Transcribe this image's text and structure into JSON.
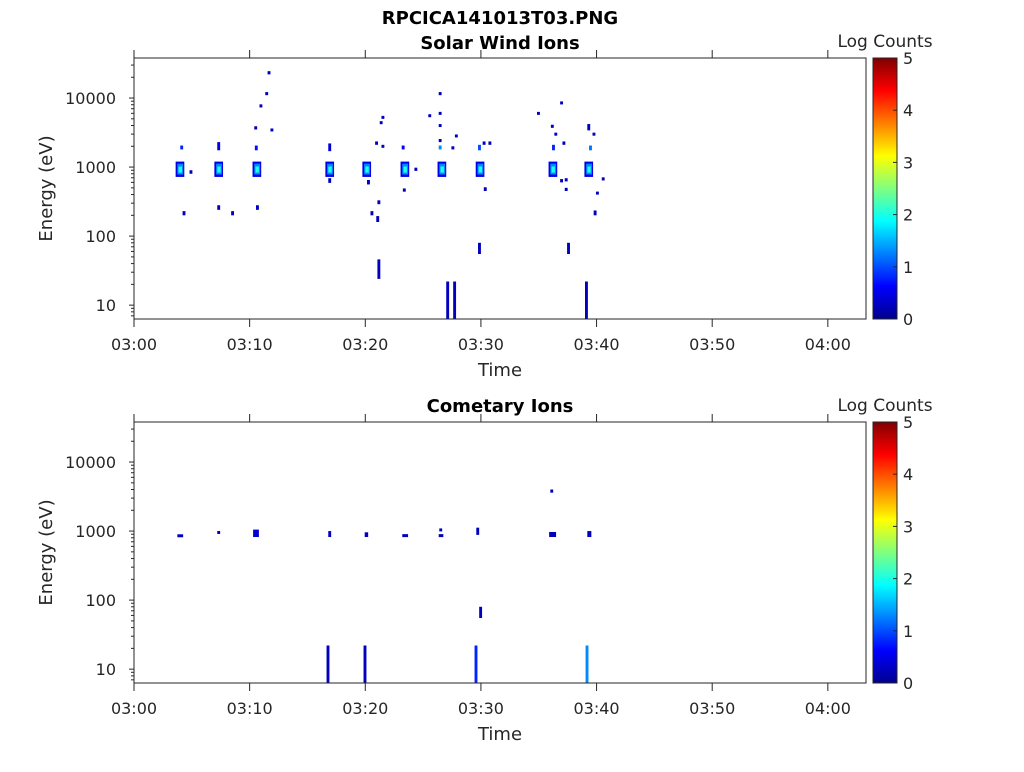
{
  "chart_data": {
    "type": "heatmap",
    "title": "RPCICA141013T03.PNG",
    "colormap": "jet",
    "panels": [
      {
        "subtitle": "Solar Wind Ions",
        "xlabel": "Time",
        "ylabel": "Energy (eV)",
        "xlim_minutes": [
          0,
          63.3
        ],
        "ylim": [
          6.3,
          38000
        ],
        "yscale": "log",
        "xticks": [
          {
            "min": 0,
            "label": "03:00"
          },
          {
            "min": 10,
            "label": "03:10"
          },
          {
            "min": 20,
            "label": "03:20"
          },
          {
            "min": 30,
            "label": "03:30"
          },
          {
            "min": 40,
            "label": "03:40"
          },
          {
            "min": 50,
            "label": "03:50"
          },
          {
            "min": 60,
            "label": "04:00"
          }
        ],
        "yticks": [
          {
            "value": 10,
            "label": "10"
          },
          {
            "value": 100,
            "label": "100"
          },
          {
            "value": 1000,
            "label": "1000"
          },
          {
            "value": 10000,
            "label": "10000"
          }
        ],
        "colorbar": {
          "label": "Log Counts",
          "range": [
            0,
            5
          ],
          "ticks": [
            "0",
            "1",
            "2",
            "3",
            "4",
            "5"
          ]
        },
        "cluster_times": [
          3.95,
          7.3,
          10.6,
          16.9,
          20.1,
          23.4,
          26.6,
          29.9,
          36.2,
          39.3
        ],
        "cells": [
          [
            4.0,
            1800,
            2050,
            0.8
          ],
          [
            4.2,
            200,
            230,
            0.3
          ],
          [
            4.8,
            800,
            900,
            0.3
          ],
          [
            7.2,
            1750,
            2300,
            0.5
          ],
          [
            7.2,
            240,
            280,
            0.3
          ],
          [
            8.4,
            200,
            230,
            0.3
          ],
          [
            10.45,
            1750,
            2050,
            0.7
          ],
          [
            10.55,
            240,
            280,
            0.3
          ],
          [
            10.4,
            3500,
            3900,
            0.3
          ],
          [
            10.85,
            7300,
            8100,
            0.3
          ],
          [
            11.35,
            11000,
            12200,
            0.3
          ],
          [
            11.55,
            22000,
            24500,
            0.3
          ],
          [
            11.8,
            3300,
            3600,
            0.3
          ],
          [
            16.8,
            1700,
            2200,
            0.4
          ],
          [
            16.8,
            590,
            690,
            0.3
          ],
          [
            20.15,
            560,
            650,
            0.3
          ],
          [
            20.45,
            200,
            230,
            0.3
          ],
          [
            20.85,
            2100,
            2350,
            0.3
          ],
          [
            21.05,
            290,
            330,
            0.3
          ],
          [
            20.95,
            160,
            195,
            0.3
          ],
          [
            21.05,
            24,
            46,
            0.3
          ],
          [
            21.25,
            4200,
            4600,
            0.3
          ],
          [
            21.4,
            5000,
            5500,
            0.3
          ],
          [
            21.4,
            1900,
            2100,
            0.3
          ],
          [
            23.15,
            1800,
            2050,
            0.6
          ],
          [
            23.25,
            440,
            490,
            0.3
          ],
          [
            24.25,
            880,
            980,
            0.3
          ],
          [
            25.45,
            5300,
            5800,
            0.3
          ],
          [
            26.35,
            11000,
            12200,
            0.3
          ],
          [
            26.35,
            5700,
            6300,
            0.3
          ],
          [
            26.35,
            3800,
            4200,
            0.3
          ],
          [
            26.35,
            2300,
            2550,
            0.3
          ],
          [
            26.35,
            1800,
            2050,
            1.3
          ],
          [
            27.0,
            6.3,
            22,
            0.3
          ],
          [
            27.6,
            6.3,
            22,
            0.3
          ],
          [
            27.45,
            1800,
            2000,
            0.3
          ],
          [
            27.75,
            2700,
            2950,
            0.3
          ],
          [
            29.75,
            1750,
            2100,
            1.0
          ],
          [
            29.75,
            55,
            80,
            0.3
          ],
          [
            30.15,
            2100,
            2350,
            0.3
          ],
          [
            30.25,
            450,
            510,
            0.3
          ],
          [
            30.65,
            2100,
            2350,
            0.3
          ],
          [
            34.85,
            5700,
            6300,
            0.3
          ],
          [
            36.05,
            3700,
            4100,
            0.3
          ],
          [
            36.15,
            1750,
            2100,
            0.8
          ],
          [
            36.35,
            2850,
            3150,
            0.3
          ],
          [
            36.85,
            8100,
            8900,
            0.3
          ],
          [
            37.05,
            2100,
            2350,
            0.3
          ],
          [
            36.85,
            600,
            670,
            0.3
          ],
          [
            37.25,
            450,
            500,
            0.3
          ],
          [
            37.25,
            620,
            690,
            0.3
          ],
          [
            37.45,
            55,
            80,
            0.3
          ],
          [
            39.2,
            3400,
            4200,
            0.3
          ],
          [
            39.65,
            2850,
            3150,
            0.3
          ],
          [
            39.35,
            1750,
            2050,
            1.2
          ],
          [
            39.0,
            6.3,
            22,
            0.3
          ],
          [
            39.75,
            200,
            235,
            0.3
          ],
          [
            39.95,
            400,
            440,
            0.3
          ],
          [
            40.45,
            640,
            710,
            0.3
          ]
        ]
      },
      {
        "subtitle": "Cometary Ions",
        "xlabel": "Time",
        "ylabel": "Energy (eV)",
        "xlim_minutes": [
          0,
          63.3
        ],
        "ylim": [
          6.3,
          38000
        ],
        "yscale": "log",
        "xticks": [
          {
            "min": 0,
            "label": "03:00"
          },
          {
            "min": 10,
            "label": "03:10"
          },
          {
            "min": 20,
            "label": "03:20"
          },
          {
            "min": 30,
            "label": "03:30"
          },
          {
            "min": 40,
            "label": "03:40"
          },
          {
            "min": 50,
            "label": "03:50"
          },
          {
            "min": 60,
            "label": "04:00"
          }
        ],
        "yticks": [
          {
            "value": 10,
            "label": "10"
          },
          {
            "value": 100,
            "label": "100"
          },
          {
            "value": 1000,
            "label": "1000"
          },
          {
            "value": 10000,
            "label": "10000"
          }
        ],
        "colorbar": {
          "label": "Log Counts",
          "range": [
            0,
            5
          ],
          "ticks": [
            "0",
            "1",
            "2",
            "3",
            "4",
            "5"
          ]
        },
        "cluster_times": [],
        "cells": [
          [
            3.75,
            820,
            890,
            0.3,
            0.5
          ],
          [
            7.2,
            910,
            1000,
            0.3
          ],
          [
            10.3,
            820,
            1050,
            0.4,
            0.5
          ],
          [
            16.8,
            820,
            1000,
            0.3
          ],
          [
            19.95,
            820,
            960,
            0.3,
            0.3
          ],
          [
            23.2,
            820,
            900,
            0.3,
            0.5
          ],
          [
            26.35,
            820,
            900,
            0.3,
            0.4
          ],
          [
            26.4,
            1000,
            1080,
            0.3
          ],
          [
            29.6,
            880,
            1120,
            0.3
          ],
          [
            29.85,
            55,
            80,
            0.3
          ],
          [
            36.0,
            3600,
            4000,
            0.3
          ],
          [
            35.9,
            820,
            970,
            0.3,
            0.6
          ],
          [
            39.2,
            820,
            1000,
            0.3,
            0.35
          ],
          [
            16.65,
            6.3,
            22,
            0.3
          ],
          [
            19.85,
            6.3,
            22,
            0.3
          ],
          [
            29.45,
            6.3,
            22,
            0.8
          ],
          [
            39.05,
            6.3,
            22,
            1.3
          ]
        ]
      }
    ]
  }
}
